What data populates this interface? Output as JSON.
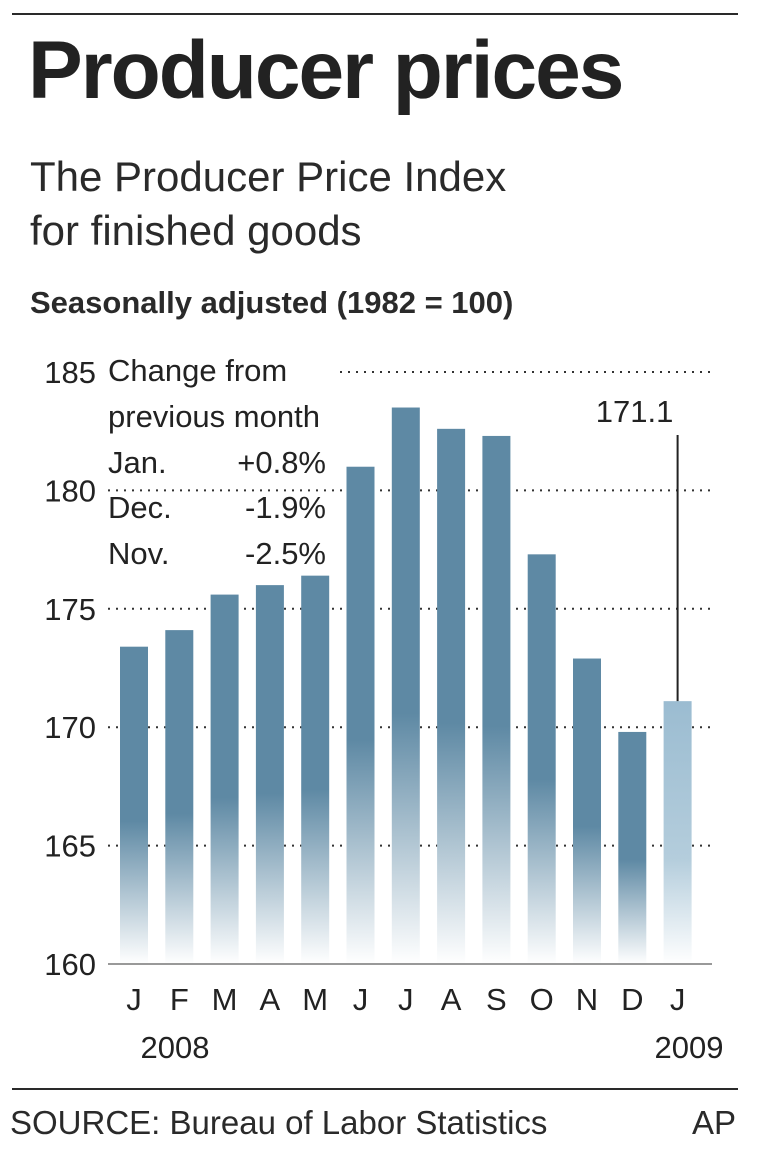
{
  "header": {
    "title": "Producer prices",
    "subtitle_line1": "The Producer Price Index",
    "subtitle_line2": "for finished goods",
    "note": "Seasonally adjusted  (1982 = 100)"
  },
  "chart_data": {
    "type": "bar",
    "categories": [
      "J",
      "F",
      "M",
      "A",
      "M",
      "J",
      "J",
      "A",
      "S",
      "O",
      "N",
      "D",
      "J"
    ],
    "year_labels": [
      "2008",
      "2009"
    ],
    "values": [
      173.4,
      174.1,
      175.6,
      176.0,
      176.4,
      181.0,
      183.5,
      182.6,
      182.3,
      177.3,
      172.9,
      169.8,
      171.1
    ],
    "ylim": [
      160,
      185
    ],
    "yticks": [
      160,
      165,
      170,
      175,
      180,
      185
    ],
    "grid": "dotted",
    "highlight": {
      "index": 12,
      "label": "171.1"
    },
    "inset": {
      "heading_line1": "Change from",
      "heading_line2": "previous month",
      "rows": [
        {
          "month": "Jan.",
          "change": "+0.8%"
        },
        {
          "month": "Dec.",
          "change": "-1.9%"
        },
        {
          "month": "Nov.",
          "change": "-2.5%"
        }
      ]
    },
    "bar_color": "#5e89a4",
    "highlight_color": "#9bbcd1"
  },
  "footer": {
    "source": "SOURCE: Bureau of Labor Statistics",
    "credit": "AP"
  }
}
